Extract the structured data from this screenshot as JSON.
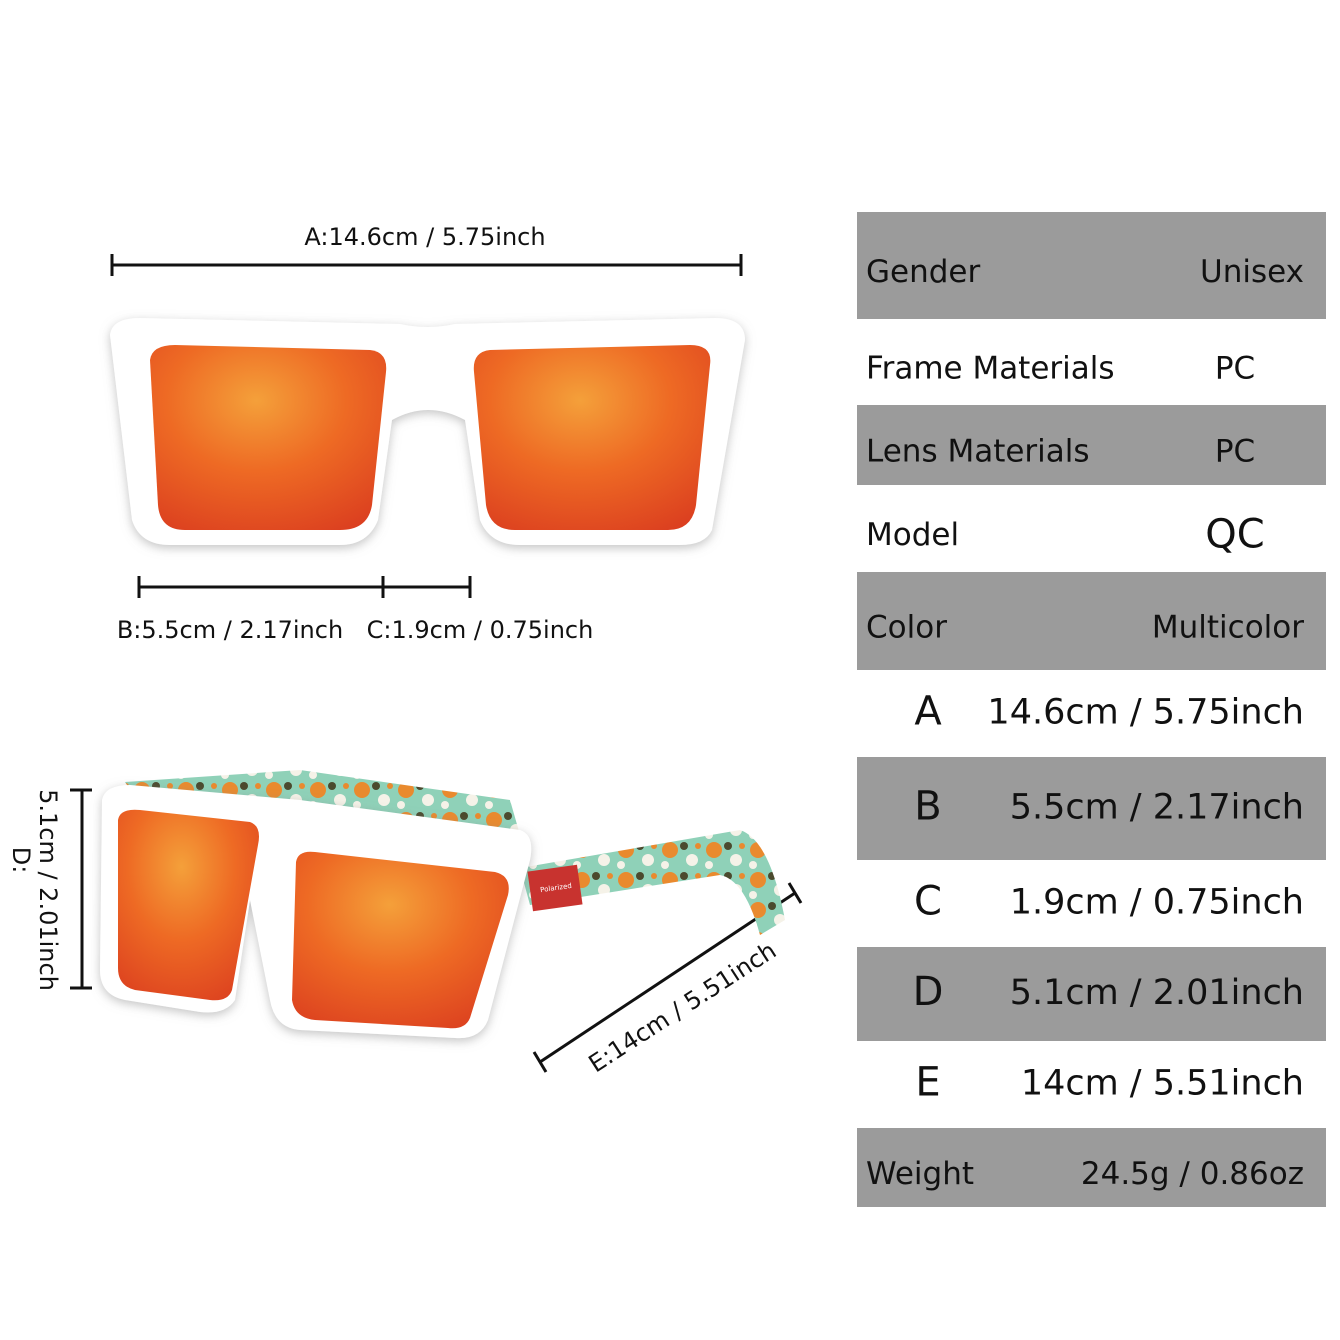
{
  "dimensions": {
    "a": "A:14.6cm / 5.75inch",
    "b": "B:5.5cm / 2.17inch",
    "c": "C:1.9cm / 0.75inch",
    "d_letter": "D:",
    "d": "5.1cm / 2.01inch",
    "e": "E:14cm / 5.51inch"
  },
  "temple_text": "Polarized",
  "table": {
    "rows": [
      [
        "Gender",
        "Unisex"
      ],
      [
        "Frame Materials",
        "PC"
      ],
      [
        "Lens Materials",
        "PC"
      ],
      [
        "Model",
        "QC"
      ],
      [
        "Color",
        "Multicolor"
      ],
      [
        "A",
        "14.6cm / 5.75inch"
      ],
      [
        "B",
        "5.5cm / 2.17inch"
      ],
      [
        "C",
        "1.9cm / 0.75inch"
      ],
      [
        "D",
        "5.1cm / 2.01inch"
      ],
      [
        "E",
        "14cm / 5.51inch"
      ],
      [
        "Weight",
        "24.5g / 0.86oz"
      ]
    ]
  }
}
